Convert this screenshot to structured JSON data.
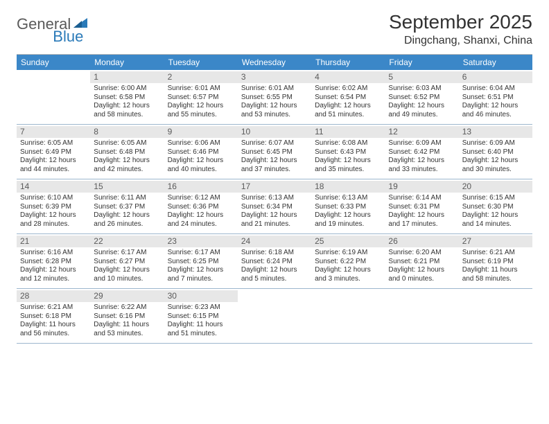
{
  "logo": {
    "text1": "General",
    "text2": "Blue"
  },
  "header": {
    "month_title": "September 2025",
    "location": "Dingchang, Shanxi, China"
  },
  "colors": {
    "header_bg": "#3b87c8",
    "header_text": "#ffffff",
    "daynum_bg": "#e7e7e7",
    "daynum_text": "#5a5a5a",
    "body_text": "#323232",
    "row_border": "#9cb6cd",
    "logo_gray": "#5a5a5a",
    "logo_blue": "#2a7ab8"
  },
  "weekdays": [
    "Sunday",
    "Monday",
    "Tuesday",
    "Wednesday",
    "Thursday",
    "Friday",
    "Saturday"
  ],
  "weeks": [
    [
      {
        "empty": true
      },
      {
        "num": "1",
        "sunrise": "Sunrise: 6:00 AM",
        "sunset": "Sunset: 6:58 PM",
        "day1": "Daylight: 12 hours",
        "day2": "and 58 minutes."
      },
      {
        "num": "2",
        "sunrise": "Sunrise: 6:01 AM",
        "sunset": "Sunset: 6:57 PM",
        "day1": "Daylight: 12 hours",
        "day2": "and 55 minutes."
      },
      {
        "num": "3",
        "sunrise": "Sunrise: 6:01 AM",
        "sunset": "Sunset: 6:55 PM",
        "day1": "Daylight: 12 hours",
        "day2": "and 53 minutes."
      },
      {
        "num": "4",
        "sunrise": "Sunrise: 6:02 AM",
        "sunset": "Sunset: 6:54 PM",
        "day1": "Daylight: 12 hours",
        "day2": "and 51 minutes."
      },
      {
        "num": "5",
        "sunrise": "Sunrise: 6:03 AM",
        "sunset": "Sunset: 6:52 PM",
        "day1": "Daylight: 12 hours",
        "day2": "and 49 minutes."
      },
      {
        "num": "6",
        "sunrise": "Sunrise: 6:04 AM",
        "sunset": "Sunset: 6:51 PM",
        "day1": "Daylight: 12 hours",
        "day2": "and 46 minutes."
      }
    ],
    [
      {
        "num": "7",
        "sunrise": "Sunrise: 6:05 AM",
        "sunset": "Sunset: 6:49 PM",
        "day1": "Daylight: 12 hours",
        "day2": "and 44 minutes."
      },
      {
        "num": "8",
        "sunrise": "Sunrise: 6:05 AM",
        "sunset": "Sunset: 6:48 PM",
        "day1": "Daylight: 12 hours",
        "day2": "and 42 minutes."
      },
      {
        "num": "9",
        "sunrise": "Sunrise: 6:06 AM",
        "sunset": "Sunset: 6:46 PM",
        "day1": "Daylight: 12 hours",
        "day2": "and 40 minutes."
      },
      {
        "num": "10",
        "sunrise": "Sunrise: 6:07 AM",
        "sunset": "Sunset: 6:45 PM",
        "day1": "Daylight: 12 hours",
        "day2": "and 37 minutes."
      },
      {
        "num": "11",
        "sunrise": "Sunrise: 6:08 AM",
        "sunset": "Sunset: 6:43 PM",
        "day1": "Daylight: 12 hours",
        "day2": "and 35 minutes."
      },
      {
        "num": "12",
        "sunrise": "Sunrise: 6:09 AM",
        "sunset": "Sunset: 6:42 PM",
        "day1": "Daylight: 12 hours",
        "day2": "and 33 minutes."
      },
      {
        "num": "13",
        "sunrise": "Sunrise: 6:09 AM",
        "sunset": "Sunset: 6:40 PM",
        "day1": "Daylight: 12 hours",
        "day2": "and 30 minutes."
      }
    ],
    [
      {
        "num": "14",
        "sunrise": "Sunrise: 6:10 AM",
        "sunset": "Sunset: 6:39 PM",
        "day1": "Daylight: 12 hours",
        "day2": "and 28 minutes."
      },
      {
        "num": "15",
        "sunrise": "Sunrise: 6:11 AM",
        "sunset": "Sunset: 6:37 PM",
        "day1": "Daylight: 12 hours",
        "day2": "and 26 minutes."
      },
      {
        "num": "16",
        "sunrise": "Sunrise: 6:12 AM",
        "sunset": "Sunset: 6:36 PM",
        "day1": "Daylight: 12 hours",
        "day2": "and 24 minutes."
      },
      {
        "num": "17",
        "sunrise": "Sunrise: 6:13 AM",
        "sunset": "Sunset: 6:34 PM",
        "day1": "Daylight: 12 hours",
        "day2": "and 21 minutes."
      },
      {
        "num": "18",
        "sunrise": "Sunrise: 6:13 AM",
        "sunset": "Sunset: 6:33 PM",
        "day1": "Daylight: 12 hours",
        "day2": "and 19 minutes."
      },
      {
        "num": "19",
        "sunrise": "Sunrise: 6:14 AM",
        "sunset": "Sunset: 6:31 PM",
        "day1": "Daylight: 12 hours",
        "day2": "and 17 minutes."
      },
      {
        "num": "20",
        "sunrise": "Sunrise: 6:15 AM",
        "sunset": "Sunset: 6:30 PM",
        "day1": "Daylight: 12 hours",
        "day2": "and 14 minutes."
      }
    ],
    [
      {
        "num": "21",
        "sunrise": "Sunrise: 6:16 AM",
        "sunset": "Sunset: 6:28 PM",
        "day1": "Daylight: 12 hours",
        "day2": "and 12 minutes."
      },
      {
        "num": "22",
        "sunrise": "Sunrise: 6:17 AM",
        "sunset": "Sunset: 6:27 PM",
        "day1": "Daylight: 12 hours",
        "day2": "and 10 minutes."
      },
      {
        "num": "23",
        "sunrise": "Sunrise: 6:17 AM",
        "sunset": "Sunset: 6:25 PM",
        "day1": "Daylight: 12 hours",
        "day2": "and 7 minutes."
      },
      {
        "num": "24",
        "sunrise": "Sunrise: 6:18 AM",
        "sunset": "Sunset: 6:24 PM",
        "day1": "Daylight: 12 hours",
        "day2": "and 5 minutes."
      },
      {
        "num": "25",
        "sunrise": "Sunrise: 6:19 AM",
        "sunset": "Sunset: 6:22 PM",
        "day1": "Daylight: 12 hours",
        "day2": "and 3 minutes."
      },
      {
        "num": "26",
        "sunrise": "Sunrise: 6:20 AM",
        "sunset": "Sunset: 6:21 PM",
        "day1": "Daylight: 12 hours",
        "day2": "and 0 minutes."
      },
      {
        "num": "27",
        "sunrise": "Sunrise: 6:21 AM",
        "sunset": "Sunset: 6:19 PM",
        "day1": "Daylight: 11 hours",
        "day2": "and 58 minutes."
      }
    ],
    [
      {
        "num": "28",
        "sunrise": "Sunrise: 6:21 AM",
        "sunset": "Sunset: 6:18 PM",
        "day1": "Daylight: 11 hours",
        "day2": "and 56 minutes."
      },
      {
        "num": "29",
        "sunrise": "Sunrise: 6:22 AM",
        "sunset": "Sunset: 6:16 PM",
        "day1": "Daylight: 11 hours",
        "day2": "and 53 minutes."
      },
      {
        "num": "30",
        "sunrise": "Sunrise: 6:23 AM",
        "sunset": "Sunset: 6:15 PM",
        "day1": "Daylight: 11 hours",
        "day2": "and 51 minutes."
      },
      {
        "empty": true
      },
      {
        "empty": true
      },
      {
        "empty": true
      },
      {
        "empty": true
      }
    ]
  ]
}
